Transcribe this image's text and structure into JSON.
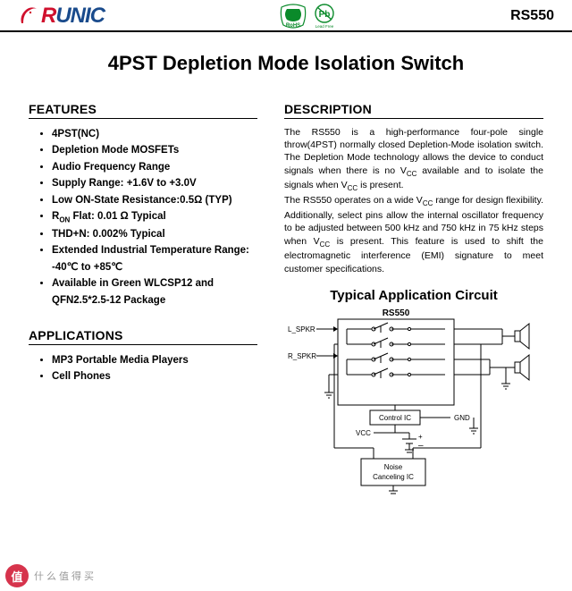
{
  "header": {
    "logo_text_prefix": "R",
    "logo_text_rest": "UNIC",
    "logo_color_r": "#d0102d",
    "logo_color_rest": "#1a4b8c",
    "rohs_label": "RoHS",
    "rohs_color": "#0a8a2a",
    "pb_label": "Pb",
    "pb_sub": "Lead Free",
    "pb_color": "#0a8a2a",
    "part_number": "RS550"
  },
  "title": "4PST Depletion Mode Isolation Switch",
  "features": {
    "heading": "FEATURES",
    "items": [
      "4PST(NC)",
      "Depletion Mode MOSFETs",
      "Audio Frequency Range",
      "Supply Range: +1.6V to +3.0V",
      "Low ON-State Resistance:0.5Ω (TYP)",
      "R<sub>ON</sub> Flat: 0.01 Ω Typical",
      "THD+N: 0.002% Typical",
      "Extended Industrial Temperature Range: -40℃ to +85℃",
      "Available in Green WLCSP12 and QFN2.5*2.5-12 Package"
    ]
  },
  "applications": {
    "heading": "APPLICATIONS",
    "items": [
      "MP3 Portable Media Players",
      "Cell Phones"
    ]
  },
  "description": {
    "heading": "DESCRIPTION",
    "para1": "The RS550 is a high-performance four-pole single throw(4PST) normally closed Depletion-Mode isolation switch. The Depletion Mode technology allows the device to conduct signals when there is no V<sub>CC</sub> available and to isolate the signals when V<sub>CC</sub> is present.",
    "para2": "The RS550 operates on a wide V<sub>CC</sub> range for design flexibility. Additionally, select pins allow the internal oscillator frequency to be adjusted between 500 kHz and 750 kHz in 75 kHz steps when V<sub>CC</sub> is present. This feature is used to shift the electromagnetic interference (EMI) signature to meet customer specifications."
  },
  "circuit": {
    "heading": "Typical Application Circuit",
    "chip_label": "RS550",
    "l_spkr": "L_SPKR",
    "r_spkr": "R_SPKR",
    "control_ic": "Control IC",
    "gnd": "GND",
    "vcc": "VCC",
    "noise_ic": "Noise\nCanceling IC",
    "line_color": "#000000",
    "fill_color": "#ffffff",
    "font_size_small": 8,
    "font_size_label": 10
  },
  "watermark": {
    "badge": "值",
    "text": "什么值得买"
  }
}
